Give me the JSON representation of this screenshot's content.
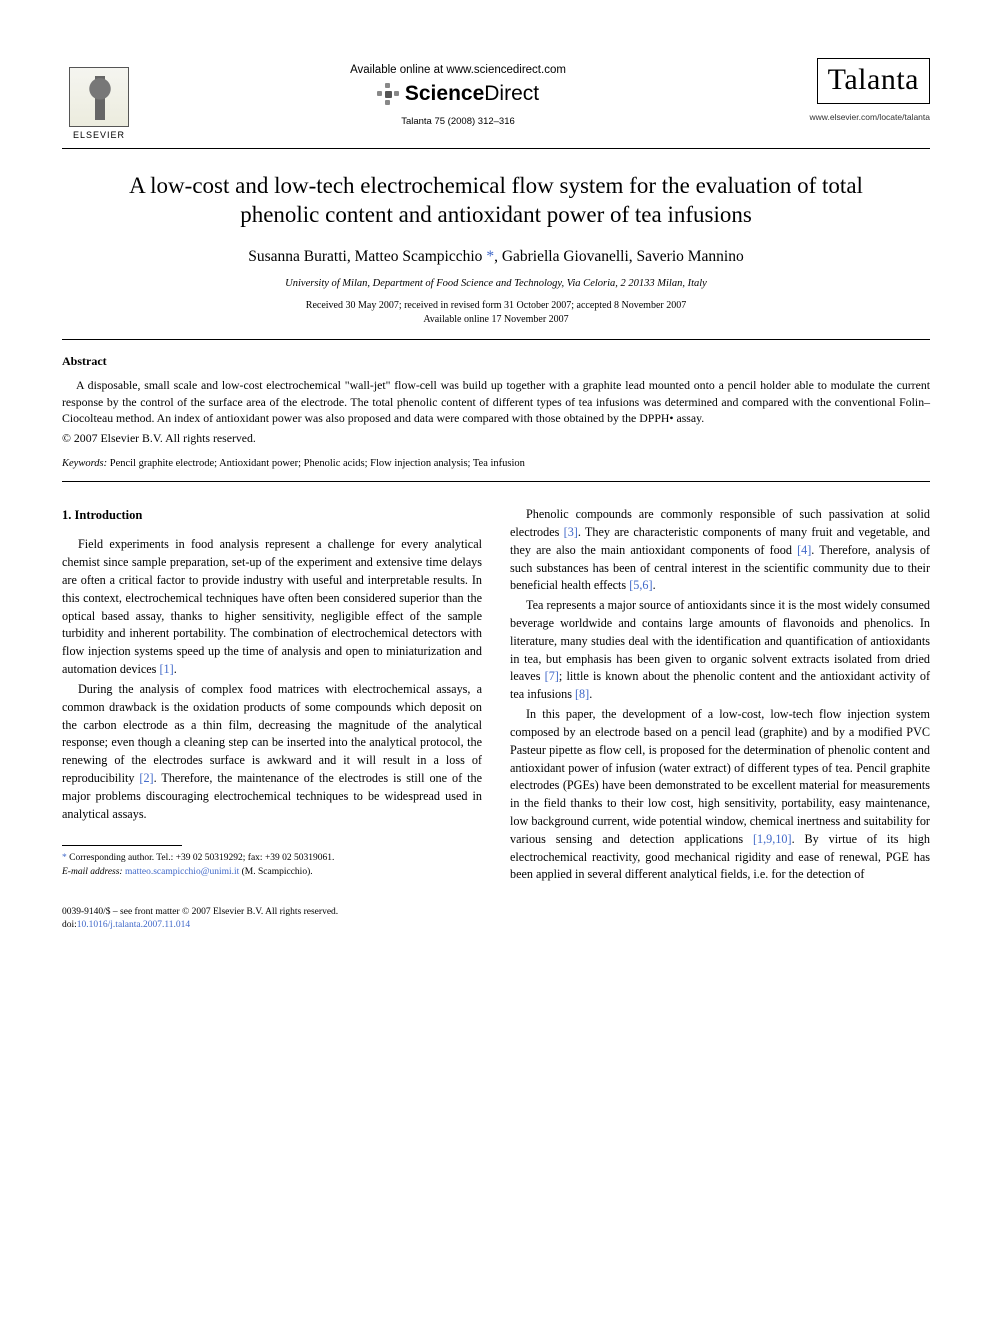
{
  "header": {
    "publisher": "ELSEVIER",
    "available_online": "Available online at www.sciencedirect.com",
    "platform": "ScienceDirect",
    "citation": "Talanta 75 (2008) 312–316",
    "journal_name": "Talanta",
    "journal_url": "www.elsevier.com/locate/talanta"
  },
  "article": {
    "title": "A low-cost and low-tech electrochemical flow system for the evaluation of total phenolic content and antioxidant power of tea infusions",
    "authors": "Susanna Buratti, Matteo Scampicchio",
    "authors_after_star": ", Gabriella Giovanelli, Saverio Mannino",
    "affiliation": "University of Milan, Department of Food Science and Technology, Via Celoria, 2 20133 Milan, Italy",
    "dates_line1": "Received 30 May 2007; received in revised form 31 October 2007; accepted 8 November 2007",
    "dates_line2": "Available online 17 November 2007"
  },
  "abstract": {
    "heading": "Abstract",
    "body": "A disposable, small scale and low-cost electrochemical \"wall-jet\" flow-cell was build up together with a graphite lead mounted onto a pencil holder able to modulate the current response by the control of the surface area of the electrode. The total phenolic content of different types of tea infusions was determined and compared with the conventional Folin–Ciocolteau method. An index of antioxidant power was also proposed and data were compared with those obtained by the DPPH• assay.",
    "copyright": "© 2007 Elsevier B.V. All rights reserved."
  },
  "keywords": {
    "label": "Keywords:",
    "text": "Pencil graphite electrode; Antioxidant power; Phenolic acids; Flow injection analysis; Tea infusion"
  },
  "body": {
    "section1_heading": "1. Introduction",
    "col1_p1": "Field experiments in food analysis represent a challenge for every analytical chemist since sample preparation, set-up of the experiment and extensive time delays are often a critical factor to provide industry with useful and interpretable results. In this context, electrochemical techniques have often been considered superior than the optical based assay, thanks to higher sensitivity, negligible effect of the sample turbidity and inherent portability. The combination of electrochemical detectors with flow injection systems speed up the time of analysis and open to miniaturization and automation devices ",
    "col1_p1_ref": "[1]",
    "col1_p1_end": ".",
    "col1_p2a": "During the analysis of complex food matrices with electrochemical assays, a common drawback is the oxidation products of some compounds which deposit on the carbon electrode as a thin film, decreasing the magnitude of the analytical response; even though a cleaning step can be inserted into the analytical protocol, the renewing of the electrodes surface is awkward and it will result in a loss of reproducibility ",
    "col1_p2_ref": "[2]",
    "col1_p2b": ". Therefore, the maintenance of the electrodes is still one of the major problems discouraging electrochemical techniques to be widespread used in analytical assays.",
    "col2_p1a": "Phenolic compounds are commonly responsible of such passivation at solid electrodes ",
    "col2_p1_ref1": "[3]",
    "col2_p1b": ". They are characteristic components of many fruit and vegetable, and they are also the main antioxidant components of food ",
    "col2_p1_ref2": "[4]",
    "col2_p1c": ". Therefore, analysis of such substances has been of central interest in the scientific community due to their beneficial health effects ",
    "col2_p1_ref3": "[5,6]",
    "col2_p1d": ".",
    "col2_p2a": "Tea represents a major source of antioxidants since it is the most widely consumed beverage worldwide and contains large amounts of flavonoids and phenolics. In literature, many studies deal with the identification and quantification of antioxidants in tea, but emphasis has been given to organic solvent extracts isolated from dried leaves ",
    "col2_p2_ref1": "[7]",
    "col2_p2b": "; little is known about the phenolic content and the antioxidant activity of tea infusions ",
    "col2_p2_ref2": "[8]",
    "col2_p2c": ".",
    "col2_p3a": "In this paper, the development of a low-cost, low-tech flow injection system composed by an electrode based on a pencil lead (graphite) and by a modified PVC Pasteur pipette as flow cell, is proposed for the determination of phenolic content and antioxidant power of infusion (water extract) of different types of tea. Pencil graphite electrodes (PGEs) have been demonstrated to be excellent material for measurements in the field thanks to their low cost, high sensitivity, portability, easy maintenance, low background current, wide potential window, chemical inertness and suitability for various sensing and detection applications ",
    "col2_p3_ref1": "[1,9,10]",
    "col2_p3b": ". By virtue of its high electrochemical reactivity, good mechanical rigidity and ease of renewal, PGE has been applied in several different analytical fields, i.e. for the detection of"
  },
  "footnote": {
    "corr": "Corresponding author. Tel.: +39 02 50319292; fax: +39 02 50319061.",
    "email_label": "E-mail address:",
    "email": "matteo.scampicchio@unimi.it",
    "email_suffix": "(M. Scampicchio)."
  },
  "footer": {
    "line1": "0039-9140/$ – see front matter © 2007 Elsevier B.V. All rights reserved.",
    "doi_label": "doi:",
    "doi": "10.1016/j.talanta.2007.11.014"
  },
  "colors": {
    "link": "#4169c9",
    "text": "#000000",
    "background": "#ffffff"
  }
}
